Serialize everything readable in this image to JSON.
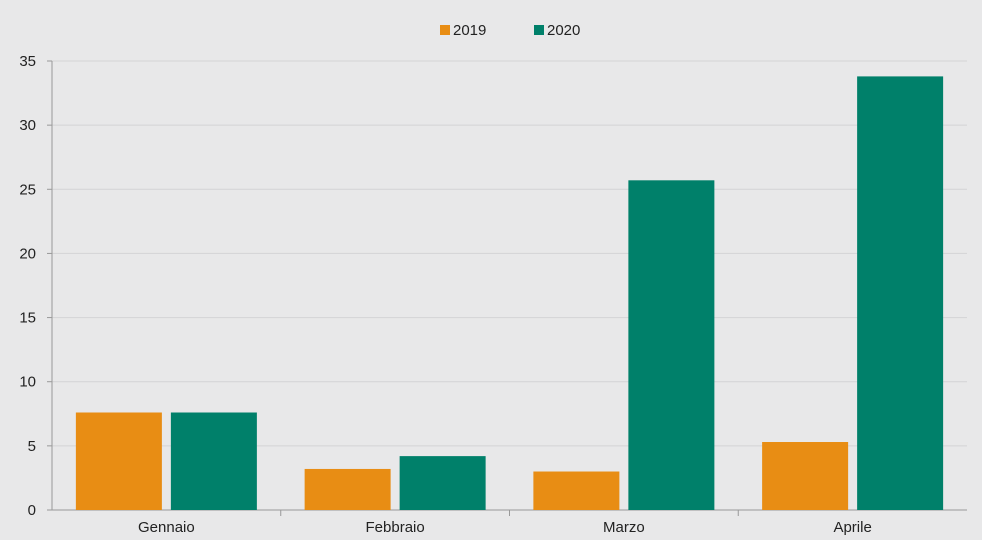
{
  "chart_data": {
    "type": "bar",
    "categories": [
      "Gennaio",
      "Febbraio",
      "Marzo",
      "Aprile"
    ],
    "series": [
      {
        "name": "2019",
        "values": [
          7.6,
          3.2,
          3.0,
          5.3
        ],
        "color": "#E88D14"
      },
      {
        "name": "2020",
        "values": [
          7.6,
          4.2,
          25.7,
          33.8
        ],
        "color": "#00806A"
      }
    ],
    "y_ticks": [
      "0",
      "5",
      "10",
      "15",
      "20",
      "25",
      "30",
      "35"
    ],
    "ylim": [
      0,
      35
    ],
    "grid": true,
    "legend_position": "top-center",
    "background_color": "#E8E8E9",
    "grid_color": "#D3D3D5",
    "axis_color": "#999999"
  }
}
